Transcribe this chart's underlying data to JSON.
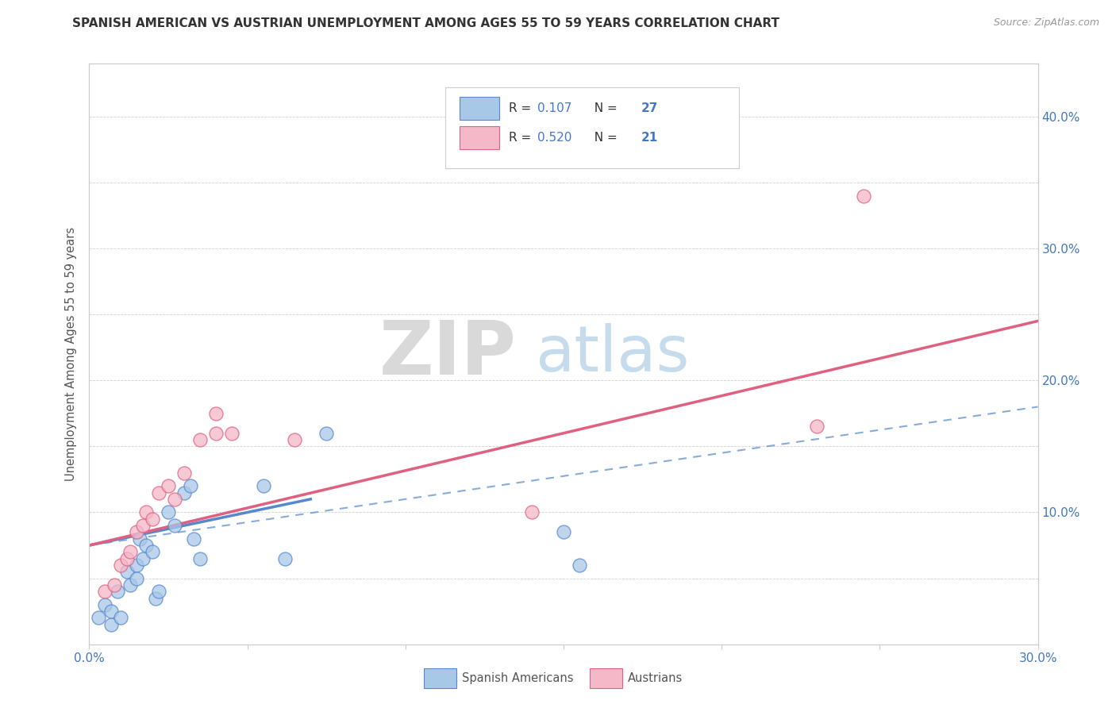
{
  "title": "SPANISH AMERICAN VS AUSTRIAN UNEMPLOYMENT AMONG AGES 55 TO 59 YEARS CORRELATION CHART",
  "source": "Source: ZipAtlas.com",
  "ylabel": "Unemployment Among Ages 55 to 59 years",
  "xlim": [
    0.0,
    0.3
  ],
  "ylim": [
    0.0,
    0.44
  ],
  "xticks": [
    0.0,
    0.05,
    0.1,
    0.15,
    0.2,
    0.25,
    0.3
  ],
  "yticks": [
    0.0,
    0.05,
    0.1,
    0.15,
    0.2,
    0.25,
    0.3,
    0.35,
    0.4
  ],
  "watermark_zip": "ZIP",
  "watermark_atlas": "atlas",
  "R1": 0.107,
  "N1": 27,
  "R2": 0.52,
  "N2": 21,
  "color_spanish": "#a8c8e8",
  "color_austrian": "#f4b8c8",
  "color_line_spanish": "#5588cc",
  "color_line_austrian": "#e06080",
  "legend_label1": "Spanish Americans",
  "legend_label2": "Austrians",
  "spanish_x": [
    0.003,
    0.005,
    0.007,
    0.007,
    0.009,
    0.01,
    0.012,
    0.013,
    0.015,
    0.015,
    0.016,
    0.017,
    0.018,
    0.02,
    0.021,
    0.022,
    0.025,
    0.027,
    0.03,
    0.032,
    0.033,
    0.035,
    0.055,
    0.062,
    0.075,
    0.15,
    0.155
  ],
  "spanish_y": [
    0.02,
    0.03,
    0.015,
    0.025,
    0.04,
    0.02,
    0.055,
    0.045,
    0.06,
    0.05,
    0.08,
    0.065,
    0.075,
    0.07,
    0.035,
    0.04,
    0.1,
    0.09,
    0.115,
    0.12,
    0.08,
    0.065,
    0.12,
    0.065,
    0.16,
    0.085,
    0.06
  ],
  "austrian_x": [
    0.005,
    0.008,
    0.01,
    0.012,
    0.013,
    0.015,
    0.017,
    0.018,
    0.02,
    0.022,
    0.025,
    0.027,
    0.03,
    0.035,
    0.04,
    0.04,
    0.045,
    0.065,
    0.14,
    0.23,
    0.245
  ],
  "austrian_y": [
    0.04,
    0.045,
    0.06,
    0.065,
    0.07,
    0.085,
    0.09,
    0.1,
    0.095,
    0.115,
    0.12,
    0.11,
    0.13,
    0.155,
    0.16,
    0.175,
    0.16,
    0.155,
    0.1,
    0.165,
    0.34
  ],
  "spanish_solid_trend": {
    "x": [
      0.0,
      0.07
    ],
    "y": [
      0.075,
      0.11
    ]
  },
  "spanish_dashed_trend": {
    "x": [
      0.0,
      0.3
    ],
    "y": [
      0.075,
      0.18
    ]
  },
  "austrian_trend": {
    "x": [
      0.0,
      0.3
    ],
    "y": [
      0.075,
      0.245
    ]
  }
}
